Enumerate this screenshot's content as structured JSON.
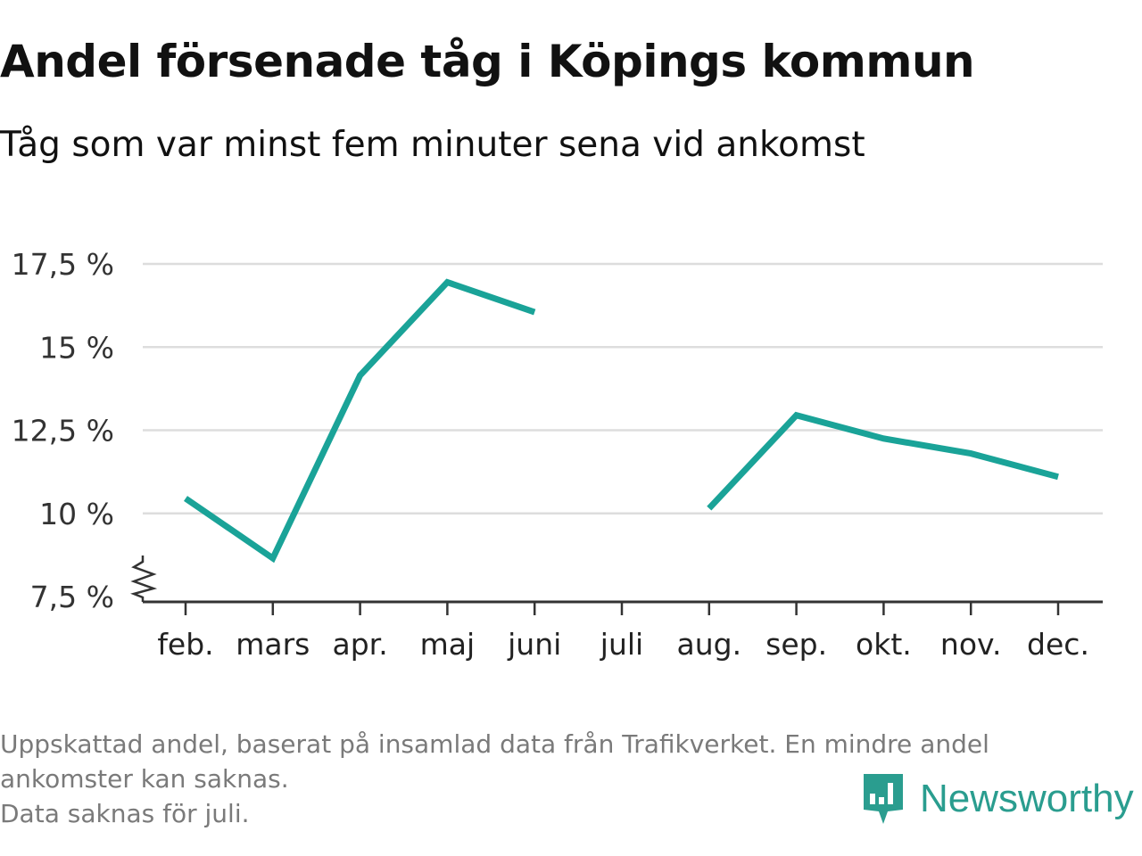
{
  "header": {
    "title": "Andel försenade tåg i Köpings kommun",
    "subtitle": "Tåg som var minst fem minuter sena vid ankomst"
  },
  "chart_data": {
    "type": "line",
    "title": "Andel försenade tåg i Köpings kommun",
    "subtitle": "Tåg som var minst fem minuter sena vid ankomst",
    "xlabel": "",
    "ylabel": "",
    "categories": [
      "feb.",
      "mars",
      "apr.",
      "maj",
      "juni",
      "juli",
      "aug.",
      "sep.",
      "okt.",
      "nov.",
      "dec."
    ],
    "series": [
      {
        "values": [
          10.45,
          8.65,
          14.15,
          16.95,
          16.05,
          null,
          10.15,
          12.95,
          12.25,
          11.8,
          11.1
        ]
      }
    ],
    "ylim": [
      7.5,
      17.5
    ],
    "yticks": [
      7.5,
      10,
      12.5,
      15,
      17.5
    ],
    "ytick_labels": [
      "7,5 %",
      "10 %",
      "12,5 %",
      "15 %",
      "17,5 %"
    ],
    "grid": true,
    "axis_break": true,
    "line_color": "#1aa398"
  },
  "footnote": {
    "lines": [
      "Uppskattad andel, baserat på insamlad data från Trafikverket. En mindre andel",
      "ankomster kan saknas.",
      "Data saknas för juli."
    ]
  },
  "brand": {
    "name": "Newsworthy",
    "icon": "newsworthy-logo-icon",
    "color": "#2a9d8f"
  }
}
